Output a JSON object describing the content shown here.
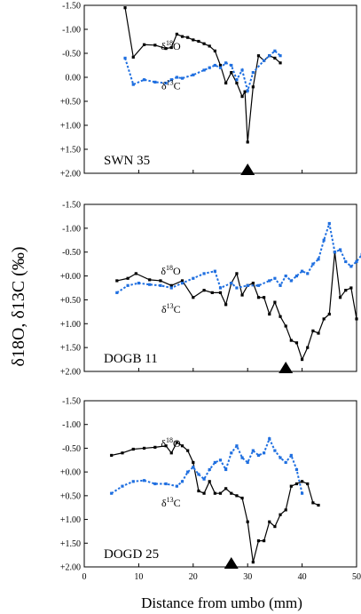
{
  "y_axis_label": "δ18O, δ13C (‰)",
  "chart_data": [
    {
      "type": "line",
      "title": "SWN 35",
      "x": [
        0,
        10,
        20,
        30,
        40,
        50
      ],
      "xlim": [
        0,
        50
      ],
      "ylim": [
        -1.5,
        2.0
      ],
      "y_reversed": true,
      "y_ticks": [
        -1.5,
        -1.0,
        -0.5,
        0.0,
        0.5,
        1.0,
        1.5,
        2.0
      ],
      "y_tick_labels": [
        "-1.50",
        "-1.00",
        "-0.50",
        "0.00",
        "+0.50",
        "+1.00",
        "+1.50",
        "+2.00"
      ],
      "x_ticks": [
        0,
        10,
        20,
        30,
        40,
        50
      ],
      "x_tick_labels": [],
      "marker_x": 30,
      "series": [
        {
          "name": "δ18O",
          "color": "#000000",
          "style": "solid",
          "points": [
            [
              7.5,
              -1.45
            ],
            [
              9,
              -0.42
            ],
            [
              11,
              -0.68
            ],
            [
              13,
              -0.67
            ],
            [
              15,
              -0.6
            ],
            [
              16,
              -0.62
            ],
            [
              17,
              -0.9
            ],
            [
              18,
              -0.85
            ],
            [
              19,
              -0.83
            ],
            [
              20,
              -0.78
            ],
            [
              21,
              -0.75
            ],
            [
              22,
              -0.7
            ],
            [
              23,
              -0.65
            ],
            [
              24,
              -0.55
            ],
            [
              25,
              -0.25
            ],
            [
              26,
              0.12
            ],
            [
              27,
              -0.1
            ],
            [
              28,
              0.12
            ],
            [
              29,
              0.4
            ],
            [
              29.5,
              0.3
            ],
            [
              30,
              1.35
            ],
            [
              31,
              0.2
            ],
            [
              32,
              -0.45
            ],
            [
              33,
              -0.35
            ],
            [
              34,
              -0.45
            ],
            [
              35,
              -0.4
            ],
            [
              36,
              -0.3
            ]
          ],
          "label_x": 19,
          "label_y": -0.65
        },
        {
          "name": "δ13C",
          "color": "#1f6fe0",
          "style": "dotted",
          "points": [
            [
              7.5,
              -0.4
            ],
            [
              9,
              0.15
            ],
            [
              11,
              0.05
            ],
            [
              13,
              0.1
            ],
            [
              15,
              0.12
            ],
            [
              16,
              0.05
            ],
            [
              17,
              0.0
            ],
            [
              18,
              0.02
            ],
            [
              20,
              -0.05
            ],
            [
              22,
              -0.15
            ],
            [
              23,
              -0.2
            ],
            [
              24,
              -0.25
            ],
            [
              25,
              -0.2
            ],
            [
              26,
              -0.3
            ],
            [
              27,
              -0.25
            ],
            [
              28,
              0.05
            ],
            [
              29,
              -0.15
            ],
            [
              30,
              0.28
            ],
            [
              31,
              -0.1
            ],
            [
              33,
              -0.35
            ],
            [
              34,
              -0.45
            ],
            [
              35,
              -0.55
            ],
            [
              36,
              -0.45
            ]
          ],
          "label_x": 19,
          "label_y": 0.18
        }
      ]
    },
    {
      "type": "line",
      "title": "DOGB 11",
      "xlim": [
        0,
        50
      ],
      "ylim": [
        -1.5,
        2.0
      ],
      "y_reversed": true,
      "y_ticks": [
        -1.5,
        -1.0,
        -0.5,
        0.0,
        0.5,
        1.0,
        1.5,
        2.0
      ],
      "y_tick_labels": [
        "-1.50",
        "-1.00",
        "-0.50",
        "+0.00",
        "+0.50",
        "+1.00",
        "+1.50",
        "+2.00"
      ],
      "x_ticks": [
        0,
        10,
        20,
        30,
        40,
        50
      ],
      "x_tick_labels": [],
      "marker_x": 37,
      "series": [
        {
          "name": "δ18O",
          "color": "#000000",
          "style": "solid",
          "points": [
            [
              6,
              0.1
            ],
            [
              8,
              0.05
            ],
            [
              9.5,
              -0.05
            ],
            [
              12,
              0.08
            ],
            [
              14,
              0.1
            ],
            [
              16,
              0.2
            ],
            [
              18,
              0.1
            ],
            [
              20,
              0.45
            ],
            [
              22,
              0.3
            ],
            [
              23.5,
              0.35
            ],
            [
              25,
              0.35
            ],
            [
              26,
              0.6
            ],
            [
              27,
              0.15
            ],
            [
              28,
              -0.05
            ],
            [
              29,
              0.4
            ],
            [
              30,
              0.2
            ],
            [
              31,
              0.15
            ],
            [
              32,
              0.45
            ],
            [
              33,
              0.45
            ],
            [
              34,
              0.8
            ],
            [
              35,
              0.55
            ],
            [
              36,
              0.85
            ],
            [
              37,
              1.05
            ],
            [
              38,
              1.35
            ],
            [
              39,
              1.4
            ],
            [
              40,
              1.75
            ],
            [
              41,
              1.5
            ],
            [
              42,
              1.15
            ],
            [
              43,
              1.2
            ],
            [
              44,
              0.9
            ],
            [
              45,
              0.8
            ],
            [
              46,
              -0.5
            ],
            [
              47,
              0.45
            ],
            [
              48,
              0.3
            ],
            [
              49,
              0.25
            ],
            [
              50,
              0.9
            ]
          ],
          "label_x": 19,
          "label_y": -0.1
        },
        {
          "name": "δ13C",
          "color": "#1f6fe0",
          "style": "dotted",
          "points": [
            [
              6,
              0.35
            ],
            [
              8,
              0.2
            ],
            [
              10,
              0.15
            ],
            [
              12,
              0.18
            ],
            [
              14,
              0.2
            ],
            [
              16,
              0.25
            ],
            [
              18,
              0.15
            ],
            [
              20,
              0.05
            ],
            [
              22,
              -0.05
            ],
            [
              24,
              -0.1
            ],
            [
              25,
              0.25
            ],
            [
              27,
              0.15
            ],
            [
              28,
              0.25
            ],
            [
              30,
              0.2
            ],
            [
              32,
              0.2
            ],
            [
              34,
              0.1
            ],
            [
              35,
              0.05
            ],
            [
              36,
              0.2
            ],
            [
              37,
              0.0
            ],
            [
              38,
              0.1
            ],
            [
              39,
              0.0
            ],
            [
              40,
              -0.1
            ],
            [
              41,
              -0.05
            ],
            [
              42,
              -0.25
            ],
            [
              43,
              -0.35
            ],
            [
              44,
              -0.75
            ],
            [
              45,
              -1.1
            ],
            [
              46,
              -0.5
            ],
            [
              47,
              -0.55
            ],
            [
              48,
              -0.3
            ],
            [
              49,
              -0.2
            ],
            [
              50,
              -0.3
            ],
            [
              51,
              -0.45
            ],
            [
              52,
              -0.25
            ]
          ],
          "label_x": 19,
          "label_y": 0.7
        }
      ]
    },
    {
      "type": "line",
      "title": "DOGD 25",
      "xlim": [
        0,
        50
      ],
      "ylim": [
        -1.5,
        2.0
      ],
      "y_reversed": true,
      "y_ticks": [
        -1.5,
        -1.0,
        -0.5,
        0.0,
        0.5,
        1.0,
        1.5,
        2.0
      ],
      "y_tick_labels": [
        "-1.50",
        "-1.00",
        "-0.50",
        "+0.00",
        "+0.50",
        "+1.00",
        "+1.50",
        "+2.00"
      ],
      "x_ticks": [
        0,
        10,
        20,
        30,
        40,
        50
      ],
      "x_tick_labels": [
        "0",
        "10",
        "20",
        "30",
        "40",
        "50"
      ],
      "xlabel": "Distance from umbo (mm)",
      "marker_x": 27,
      "series": [
        {
          "name": "δ18O",
          "color": "#000000",
          "style": "solid",
          "points": [
            [
              5,
              -0.35
            ],
            [
              7,
              -0.4
            ],
            [
              9,
              -0.48
            ],
            [
              11,
              -0.5
            ],
            [
              13,
              -0.52
            ],
            [
              15,
              -0.55
            ],
            [
              16,
              -0.4
            ],
            [
              17,
              -0.62
            ],
            [
              18,
              -0.55
            ],
            [
              19,
              -0.45
            ],
            [
              20,
              -0.2
            ],
            [
              21,
              0.4
            ],
            [
              22,
              0.45
            ],
            [
              23,
              0.2
            ],
            [
              24,
              0.45
            ],
            [
              25,
              0.45
            ],
            [
              26,
              0.35
            ],
            [
              27,
              0.45
            ],
            [
              28,
              0.5
            ],
            [
              29,
              0.55
            ],
            [
              30,
              1.05
            ],
            [
              31,
              1.9
            ],
            [
              32,
              1.45
            ],
            [
              33,
              1.45
            ],
            [
              34,
              1.05
            ],
            [
              35,
              1.15
            ],
            [
              36,
              0.9
            ],
            [
              37,
              0.8
            ],
            [
              38,
              0.3
            ],
            [
              39,
              0.25
            ],
            [
              40,
              0.2
            ],
            [
              41,
              0.25
            ],
            [
              42,
              0.65
            ],
            [
              43,
              0.7
            ]
          ],
          "label_x": 19,
          "label_y": -0.6
        },
        {
          "name": "δ13C",
          "color": "#1f6fe0",
          "style": "dotted",
          "points": [
            [
              5,
              0.45
            ],
            [
              7,
              0.3
            ],
            [
              9,
              0.2
            ],
            [
              11,
              0.18
            ],
            [
              13,
              0.25
            ],
            [
              15,
              0.25
            ],
            [
              17,
              0.3
            ],
            [
              18,
              0.2
            ],
            [
              19,
              0.0
            ],
            [
              20,
              -0.1
            ],
            [
              21,
              0.05
            ],
            [
              22,
              0.15
            ],
            [
              23,
              -0.05
            ],
            [
              24,
              -0.2
            ],
            [
              25,
              -0.25
            ],
            [
              26,
              -0.05
            ],
            [
              27,
              -0.4
            ],
            [
              28,
              -0.55
            ],
            [
              29,
              -0.3
            ],
            [
              30,
              -0.2
            ],
            [
              31,
              -0.45
            ],
            [
              32,
              -0.35
            ],
            [
              33,
              -0.4
            ],
            [
              34,
              -0.7
            ],
            [
              35,
              -0.45
            ],
            [
              36,
              -0.3
            ],
            [
              37,
              -0.2
            ],
            [
              38,
              -0.35
            ],
            [
              39,
              -0.05
            ],
            [
              40,
              0.45
            ]
          ],
          "label_x": 19,
          "label_y": 0.65
        }
      ]
    }
  ]
}
